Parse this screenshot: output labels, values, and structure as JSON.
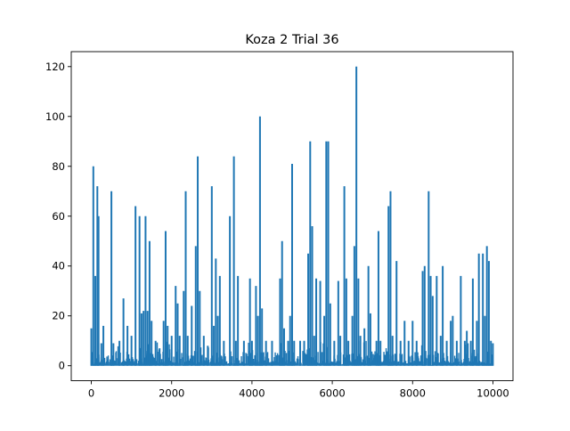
{
  "chart_data": {
    "type": "line",
    "title": "Koza 2 Trial 36",
    "xlabel": "",
    "ylabel": "",
    "xlim": [
      -500,
      10500
    ],
    "ylim": [
      -6,
      126
    ],
    "x_ticks": [
      0,
      2000,
      4000,
      6000,
      8000,
      10000
    ],
    "x_tick_labels": [
      "0",
      "2000",
      "4000",
      "6000",
      "8000",
      "10000"
    ],
    "y_ticks": [
      0,
      20,
      40,
      60,
      80,
      100,
      120
    ],
    "y_tick_labels": [
      "0",
      "20",
      "40",
      "60",
      "80",
      "100",
      "120"
    ],
    "grid": false,
    "legend": "none",
    "line_color": "#1f77b4",
    "x_range": [
      0,
      9999
    ],
    "baseline_band": [
      0,
      10
    ],
    "series": [
      {
        "peaks": [
          [
            0,
            15
          ],
          [
            50,
            80
          ],
          [
            100,
            36
          ],
          [
            150,
            72
          ],
          [
            180,
            60
          ],
          [
            250,
            9
          ],
          [
            300,
            16
          ],
          [
            500,
            70
          ],
          [
            550,
            9
          ],
          [
            700,
            10
          ],
          [
            800,
            27
          ],
          [
            900,
            16
          ],
          [
            1000,
            12
          ],
          [
            1100,
            64
          ],
          [
            1200,
            60
          ],
          [
            1250,
            21
          ],
          [
            1300,
            22
          ],
          [
            1350,
            60
          ],
          [
            1400,
            22
          ],
          [
            1450,
            50
          ],
          [
            1500,
            18
          ],
          [
            1600,
            10
          ],
          [
            1700,
            7
          ],
          [
            1800,
            18
          ],
          [
            1850,
            54
          ],
          [
            1900,
            16
          ],
          [
            2000,
            12
          ],
          [
            2100,
            32
          ],
          [
            2150,
            25
          ],
          [
            2200,
            12
          ],
          [
            2300,
            30
          ],
          [
            2350,
            70
          ],
          [
            2400,
            12
          ],
          [
            2500,
            24
          ],
          [
            2600,
            48
          ],
          [
            2650,
            84
          ],
          [
            2700,
            30
          ],
          [
            2800,
            12
          ],
          [
            2900,
            8
          ],
          [
            3000,
            72
          ],
          [
            3050,
            16
          ],
          [
            3100,
            43
          ],
          [
            3150,
            20
          ],
          [
            3200,
            36
          ],
          [
            3300,
            10
          ],
          [
            3450,
            60
          ],
          [
            3550,
            84
          ],
          [
            3600,
            10
          ],
          [
            3650,
            36
          ],
          [
            3800,
            10
          ],
          [
            3950,
            35
          ],
          [
            4000,
            10
          ],
          [
            4100,
            32
          ],
          [
            4150,
            20
          ],
          [
            4200,
            100
          ],
          [
            4250,
            23
          ],
          [
            4350,
            10
          ],
          [
            4500,
            10
          ],
          [
            4700,
            35
          ],
          [
            4750,
            50
          ],
          [
            4800,
            15
          ],
          [
            4900,
            10
          ],
          [
            4950,
            20
          ],
          [
            5000,
            81
          ],
          [
            5050,
            10
          ],
          [
            5200,
            10
          ],
          [
            5300,
            10
          ],
          [
            5400,
            45
          ],
          [
            5450,
            90
          ],
          [
            5500,
            56
          ],
          [
            5550,
            12
          ],
          [
            5600,
            35
          ],
          [
            5700,
            34
          ],
          [
            5800,
            20
          ],
          [
            5850,
            90
          ],
          [
            5900,
            90
          ],
          [
            5950,
            25
          ],
          [
            6050,
            10
          ],
          [
            6150,
            34
          ],
          [
            6200,
            12
          ],
          [
            6300,
            72
          ],
          [
            6350,
            35
          ],
          [
            6400,
            10
          ],
          [
            6500,
            20
          ],
          [
            6550,
            48
          ],
          [
            6600,
            120
          ],
          [
            6650,
            35
          ],
          [
            6700,
            12
          ],
          [
            6800,
            15
          ],
          [
            6900,
            40
          ],
          [
            6950,
            21
          ],
          [
            7100,
            10
          ],
          [
            7150,
            54
          ],
          [
            7200,
            10
          ],
          [
            7400,
            64
          ],
          [
            7450,
            70
          ],
          [
            7500,
            12
          ],
          [
            7600,
            42
          ],
          [
            7700,
            10
          ],
          [
            7800,
            18
          ],
          [
            7900,
            10
          ],
          [
            8000,
            18
          ],
          [
            8100,
            10
          ],
          [
            8250,
            38
          ],
          [
            8300,
            40
          ],
          [
            8400,
            70
          ],
          [
            8450,
            36
          ],
          [
            8500,
            28
          ],
          [
            8600,
            36
          ],
          [
            8700,
            12
          ],
          [
            8750,
            40
          ],
          [
            8850,
            10
          ],
          [
            8950,
            18
          ],
          [
            9000,
            20
          ],
          [
            9100,
            10
          ],
          [
            9200,
            36
          ],
          [
            9300,
            10
          ],
          [
            9350,
            14
          ],
          [
            9450,
            10
          ],
          [
            9500,
            35
          ],
          [
            9600,
            18
          ],
          [
            9650,
            45
          ],
          [
            9750,
            45
          ],
          [
            9800,
            20
          ],
          [
            9850,
            48
          ],
          [
            9900,
            42
          ],
          [
            9950,
            10
          ],
          [
            9999,
            9
          ]
        ]
      }
    ]
  }
}
